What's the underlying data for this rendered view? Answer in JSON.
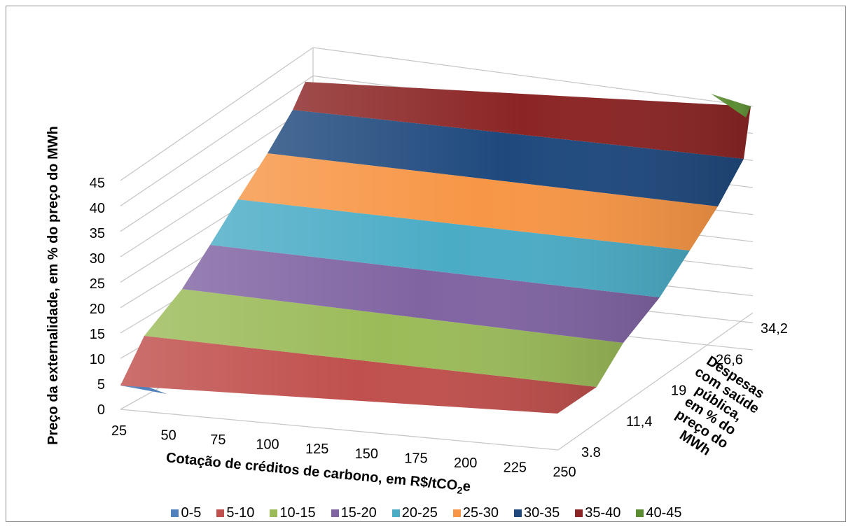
{
  "chart_data": {
    "type": "surface",
    "title": "",
    "xlabel": "Cotação de créditos de carbono, em R$/tCO",
    "xlabel_sub": "2",
    "xlabel_suffix": "e",
    "ylabel_lines": [
      "Despesas",
      "com saúde",
      "pública,",
      "em % do",
      "preço do",
      "MWh"
    ],
    "zlabel": "Preço da externalidade, em % do preço do MWh",
    "x_ticks": [
      "25",
      "50",
      "75",
      "100",
      "125",
      "150",
      "175",
      "200",
      "225",
      "250"
    ],
    "y_ticks": [
      "3.8",
      "11,4",
      "19",
      "26,6",
      "34,2"
    ],
    "z_ticks": [
      "0",
      "5",
      "10",
      "15",
      "20",
      "25",
      "30",
      "35",
      "40",
      "45"
    ],
    "zlim": [
      0,
      45
    ],
    "legend": [
      {
        "label": "0-5",
        "color": "#4f81bd"
      },
      {
        "label": "5-10",
        "color": "#c0504d"
      },
      {
        "label": "10-15",
        "color": "#9bbb59"
      },
      {
        "label": "15-20",
        "color": "#8064a2"
      },
      {
        "label": "20-25",
        "color": "#4bacc6"
      },
      {
        "label": "25-30",
        "color": "#f79646"
      },
      {
        "label": "30-35",
        "color": "#1f497d"
      },
      {
        "label": "35-40",
        "color": "#8b2525"
      },
      {
        "label": "40-45",
        "color": "#5b8c32"
      }
    ],
    "bands": [
      {
        "range": "0-5",
        "polygon": [
          [
            172,
            551
          ],
          [
            193,
            546
          ],
          [
            238,
            563
          ],
          [
            172,
            551
          ]
        ]
      },
      {
        "range": "5-10",
        "polygon": [
          [
            172,
            551
          ],
          [
            206,
            480
          ],
          [
            852,
            553
          ],
          [
            796,
            591
          ],
          [
            172,
            551
          ]
        ]
      },
      {
        "range": "10-15",
        "polygon": [
          [
            206,
            480
          ],
          [
            260,
            413
          ],
          [
            890,
            490
          ],
          [
            852,
            553
          ],
          [
            206,
            480
          ]
        ]
      },
      {
        "range": "15-20",
        "polygon": [
          [
            260,
            413
          ],
          [
            300,
            350
          ],
          [
            942,
            425
          ],
          [
            890,
            490
          ],
          [
            260,
            413
          ]
        ]
      },
      {
        "range": "20-25",
        "polygon": [
          [
            300,
            350
          ],
          [
            340,
            285
          ],
          [
            985,
            358
          ],
          [
            942,
            425
          ],
          [
            300,
            350
          ]
        ]
      },
      {
        "range": "25-30",
        "polygon": [
          [
            340,
            285
          ],
          [
            382,
            219
          ],
          [
            1025,
            295
          ],
          [
            985,
            358
          ],
          [
            340,
            285
          ]
        ]
      },
      {
        "range": "30-35",
        "polygon": [
          [
            382,
            219
          ],
          [
            418,
            157
          ],
          [
            1062,
            227
          ],
          [
            1025,
            295
          ],
          [
            382,
            219
          ]
        ]
      },
      {
        "range": "35-40",
        "polygon": [
          [
            418,
            157
          ],
          [
            436,
            117
          ],
          [
            1072,
            152
          ],
          [
            1062,
            227
          ],
          [
            418,
            157
          ]
        ]
      },
      {
        "range": "40-45",
        "polygon": [
          [
            1015,
            134
          ],
          [
            1072,
            152
          ],
          [
            1065,
            168
          ],
          [
            1015,
            134
          ]
        ]
      }
    ]
  }
}
